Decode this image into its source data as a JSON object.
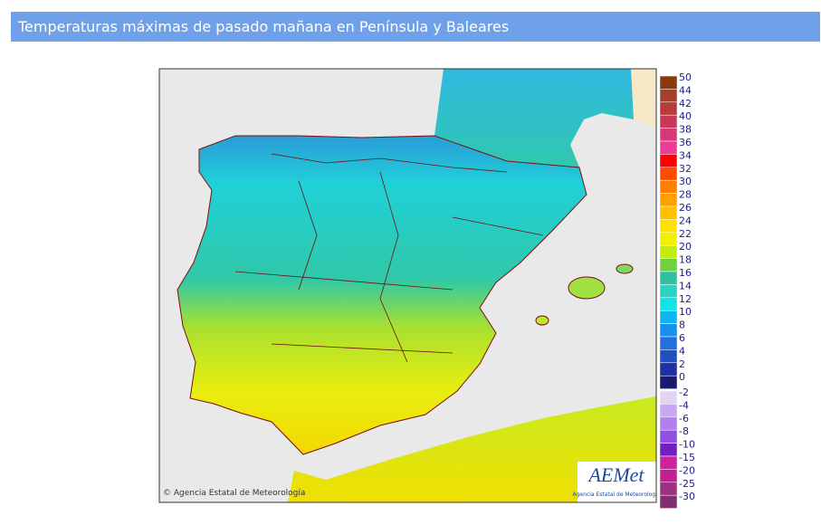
{
  "header": {
    "title": "Temperaturas máximas de pasado mañana en Península y Baleares"
  },
  "legend": {
    "entries": [
      {
        "label": 50,
        "color": "#8b3a0f"
      },
      {
        "label": 44,
        "color": "#a3422a"
      },
      {
        "label": 42,
        "color": "#b83c3c"
      },
      {
        "label": 40,
        "color": "#c8385a"
      },
      {
        "label": 38,
        "color": "#d83878"
      },
      {
        "label": 36,
        "color": "#ec3c98"
      },
      {
        "label": 34,
        "color": "#ff0000"
      },
      {
        "label": 32,
        "color": "#ff4a00"
      },
      {
        "label": 30,
        "color": "#ff7f00"
      },
      {
        "label": 28,
        "color": "#ffa000"
      },
      {
        "label": 26,
        "color": "#ffc000"
      },
      {
        "label": 24,
        "color": "#ffe000"
      },
      {
        "label": 22,
        "color": "#f0f000"
      },
      {
        "label": 20,
        "color": "#c0ec10"
      },
      {
        "label": 18,
        "color": "#70d040"
      },
      {
        "label": 16,
        "color": "#30c0a0"
      },
      {
        "label": 14,
        "color": "#28d4c4"
      },
      {
        "label": 12,
        "color": "#10e4e4"
      },
      {
        "label": 10,
        "color": "#10b4f0"
      },
      {
        "label": 8,
        "color": "#1890f0"
      },
      {
        "label": 6,
        "color": "#2070e0"
      },
      {
        "label": 4,
        "color": "#2050c0"
      },
      {
        "label": 2,
        "color": "#2030a0"
      },
      {
        "label": 0,
        "color": "#1a1a70"
      }
    ],
    "negative_entries": [
      {
        "label": -2,
        "color": "#e4d4f4"
      },
      {
        "label": -4,
        "color": "#c8a8f0"
      },
      {
        "label": -6,
        "color": "#b080f0"
      },
      {
        "label": -8,
        "color": "#9050e0"
      },
      {
        "label": -10,
        "color": "#7020c0"
      },
      {
        "label": -15,
        "color": "#d020a0"
      },
      {
        "label": -20,
        "color": "#c02090"
      },
      {
        "label": -25,
        "color": "#a03080"
      },
      {
        "label": -30,
        "color": "#803070"
      }
    ]
  },
  "map": {
    "credit": "© Agencia Estatal de Meteorología",
    "logo": {
      "name": "AEMet",
      "subtitle": "Agencia Estatal de Meteorología"
    }
  }
}
